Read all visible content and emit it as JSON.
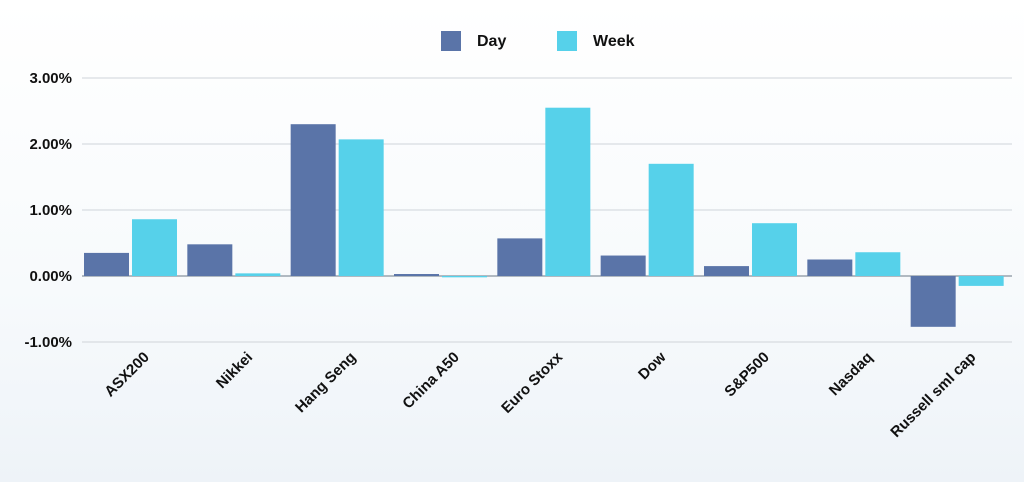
{
  "chart_data": {
    "type": "bar",
    "categories": [
      "ASX200",
      "Nikkei",
      "Hang Seng",
      "China A50",
      "Euro Stoxx",
      "Dow",
      "S&P500",
      "Nasdaq",
      "Russell sml cap"
    ],
    "series": [
      {
        "name": "Day",
        "color": "#5a74a8",
        "values": [
          0.35,
          0.48,
          2.3,
          0.03,
          0.57,
          0.31,
          0.15,
          0.25,
          -0.77
        ]
      },
      {
        "name": "Week",
        "color": "#56d1ea",
        "values": [
          0.86,
          0.04,
          2.07,
          -0.02,
          2.55,
          1.7,
          0.8,
          0.36,
          -0.15
        ]
      }
    ],
    "yticks": [
      {
        "value": 3,
        "label": "3.00%"
      },
      {
        "value": 2,
        "label": "2.00%"
      },
      {
        "value": 1,
        "label": "1.00%"
      },
      {
        "value": 0,
        "label": "0.00%"
      },
      {
        "value": -1,
        "label": "-1.00%"
      }
    ],
    "ylim": [
      -1,
      3
    ],
    "grid": true,
    "legend_position": "top-center",
    "title": "",
    "xlabel": "",
    "ylabel": ""
  }
}
